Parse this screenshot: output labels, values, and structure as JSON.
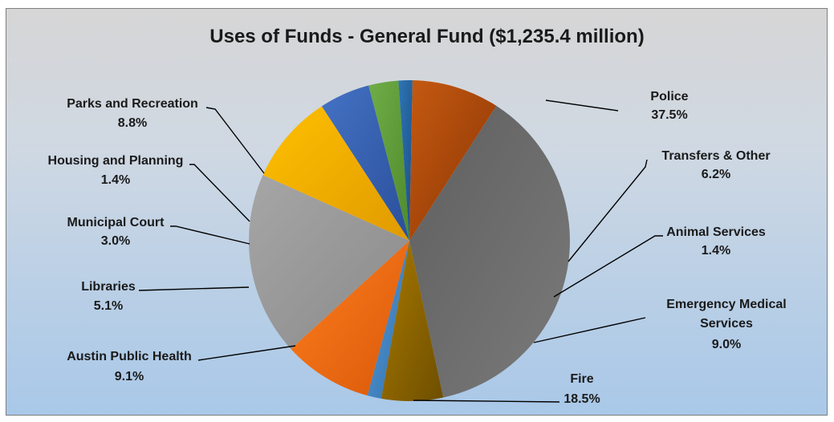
{
  "chart_data": {
    "type": "pie",
    "title": "Uses of Funds - General Fund ($1,235.4 million)",
    "unit": "%",
    "slices": [
      {
        "name": "Police",
        "value": 37.5,
        "label": "37.5%",
        "color": "#5f5f5f",
        "color2": "#7a7a7a"
      },
      {
        "name": "Transfers & Other",
        "value": 6.2,
        "label": "6.2%",
        "color": "#a97a00",
        "color2": "#6e4e00"
      },
      {
        "name": "Animal Services",
        "value": 1.4,
        "label": "1.4%",
        "color": "#5b9bd5",
        "color2": "#2f6fae"
      },
      {
        "name": "Emergency Medical Services",
        "value": 9.0,
        "label": "9.0%",
        "color": "#ff7f1e",
        "color2": "#d9580a"
      },
      {
        "name": "Fire",
        "value": 18.5,
        "label": "18.5%",
        "color": "#a6a6a6",
        "color2": "#8a8a8a"
      },
      {
        "name": "Austin Public Health",
        "value": 9.1,
        "label": "9.1%",
        "color": "#ffc000",
        "color2": "#e09a00"
      },
      {
        "name": "Libraries",
        "value": 5.1,
        "label": "5.1%",
        "color": "#4472c4",
        "color2": "#2a4f9a"
      },
      {
        "name": "Municipal Court",
        "value": 3.0,
        "label": "3.0%",
        "color": "#70ad47",
        "color2": "#4f8a2c"
      },
      {
        "name": "Housing and Planning",
        "value": 1.4,
        "label": "1.4%",
        "color": "#2e75b6",
        "color2": "#1b4f82"
      },
      {
        "name": "Parks and Recreation",
        "value": 8.8,
        "label": "8.8%",
        "color": "#c55a11",
        "color2": "#8a3404"
      }
    ]
  }
}
